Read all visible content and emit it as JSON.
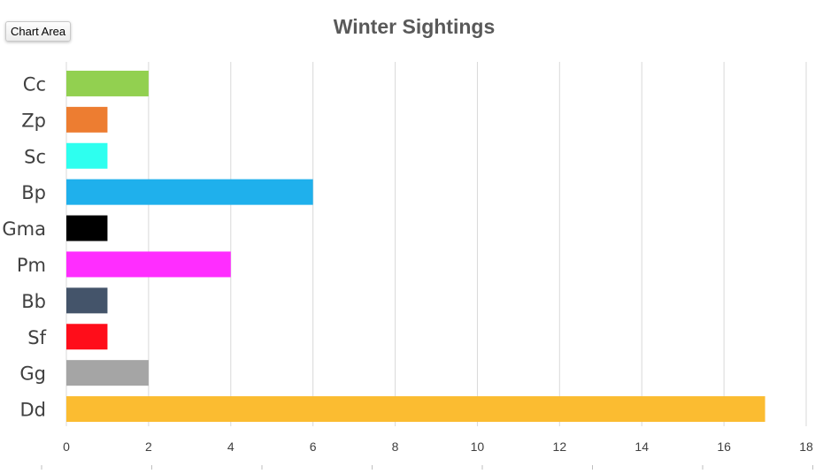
{
  "tooltip": {
    "label": "Chart Area"
  },
  "chart_data": {
    "type": "bar",
    "orientation": "horizontal",
    "title": "Winter Sightings",
    "categories": [
      "Cc",
      "Zp",
      "Sc",
      "Bp",
      "Gma",
      "Pm",
      "Bb",
      "Sf",
      "Gg",
      "Dd"
    ],
    "values": [
      2,
      1,
      1,
      6,
      1,
      4,
      1,
      1,
      2,
      17
    ],
    "colors": [
      "#92d050",
      "#ed7d31",
      "#2effef",
      "#1fb0ec",
      "#000000",
      "#ff2dff",
      "#44546a",
      "#ff0d1a",
      "#a5a5a5",
      "#fbbc31"
    ],
    "xlim": [
      0,
      18
    ],
    "xticks": [
      "0",
      "2",
      "4",
      "6",
      "8",
      "10",
      "12",
      "14",
      "16",
      "18"
    ],
    "grid": true,
    "legend": "none"
  }
}
